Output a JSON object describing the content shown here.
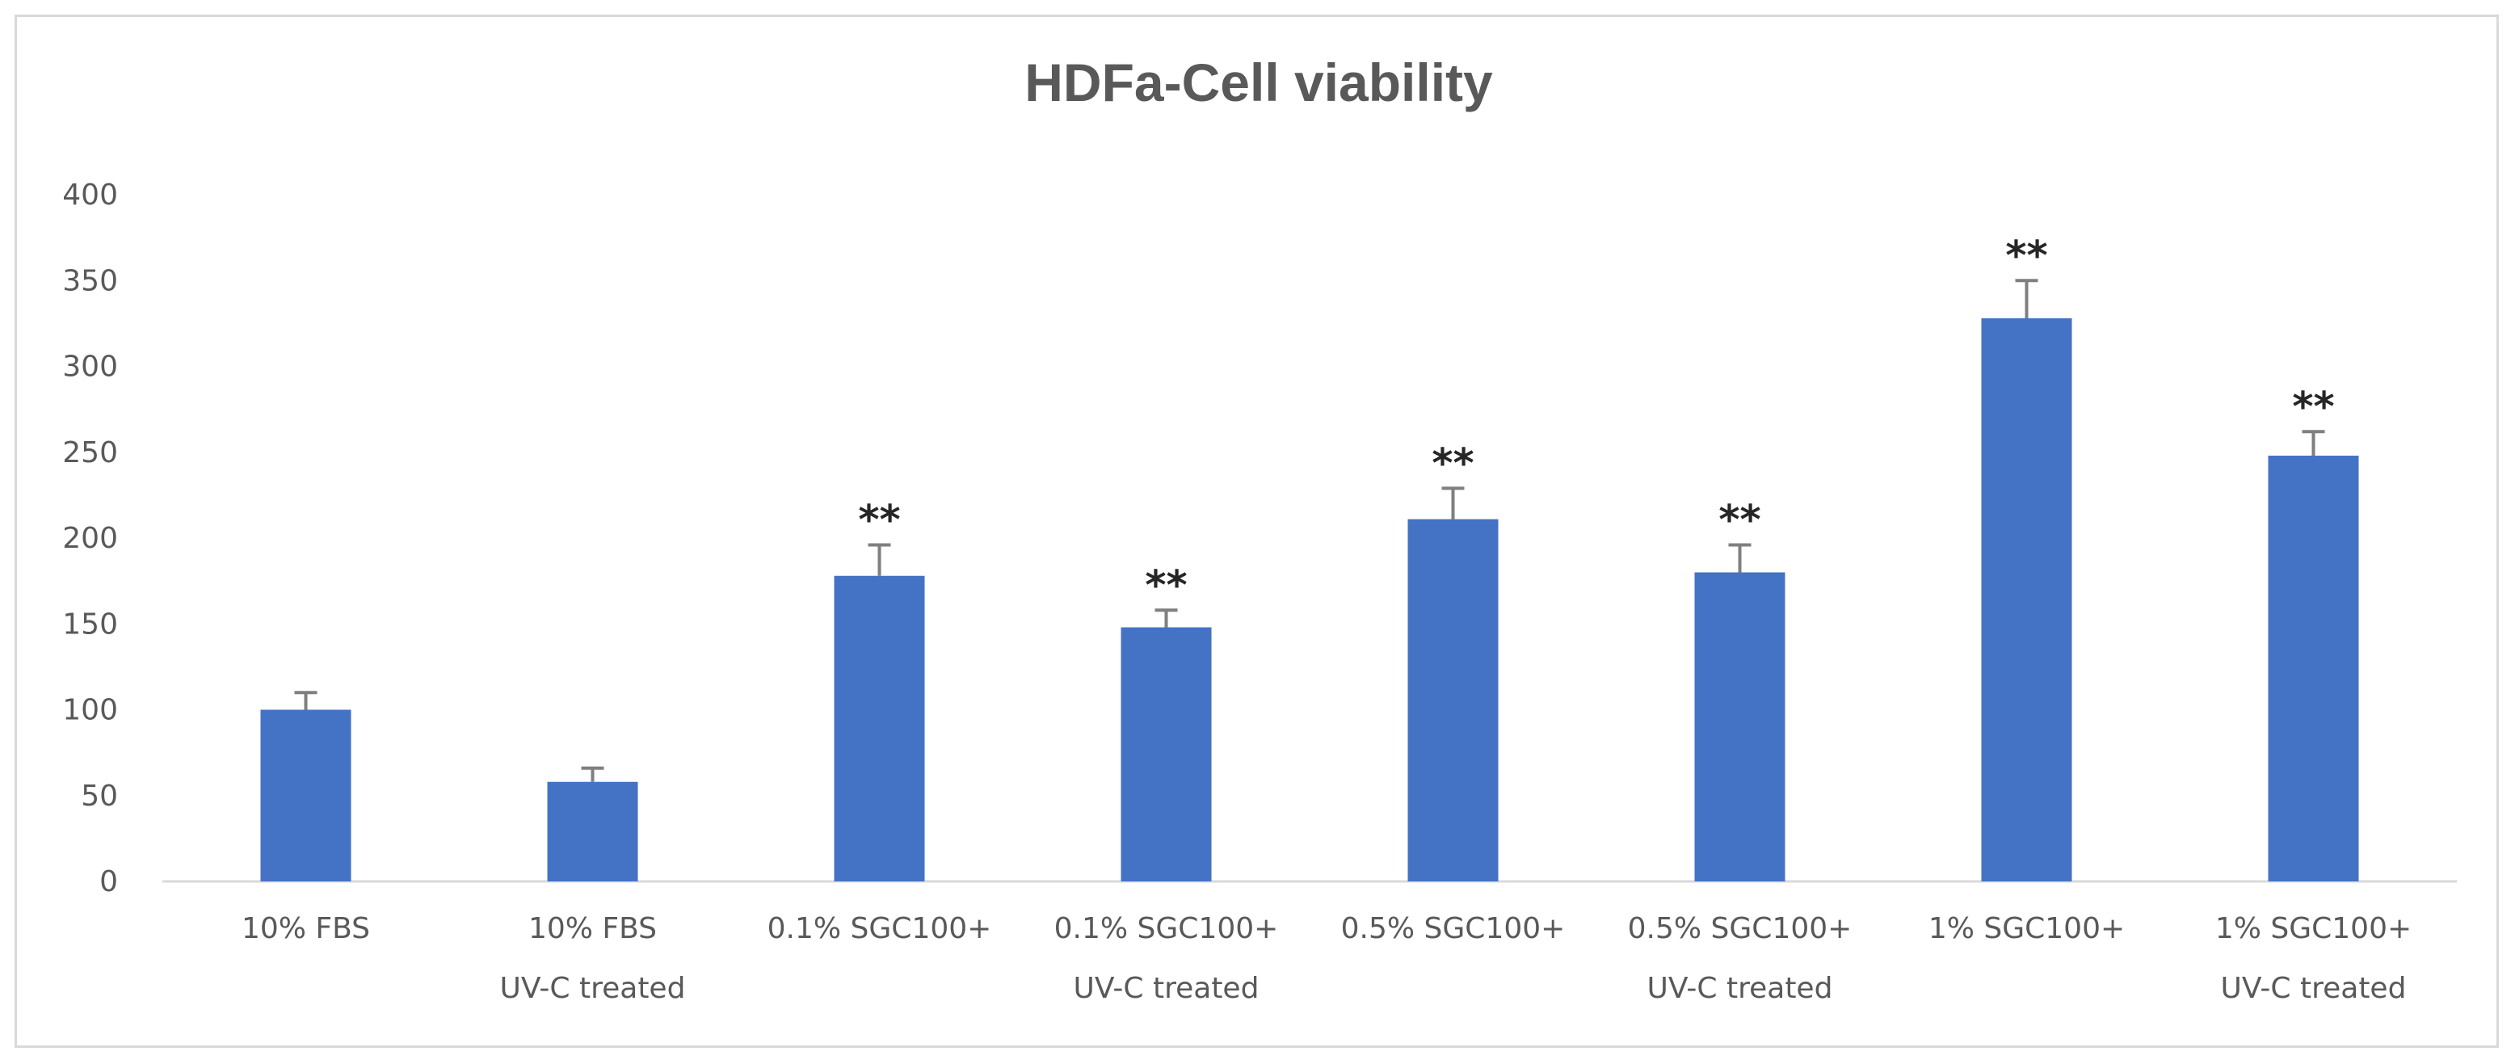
{
  "chart_data": {
    "type": "bar",
    "title": "HDFa-Cell viability",
    "xlabel": "",
    "ylabel": "",
    "ylim": [
      0,
      400
    ],
    "yticks": [
      0,
      50,
      100,
      150,
      200,
      250,
      300,
      350,
      400
    ],
    "grid": false,
    "legend": "none",
    "categories": [
      [
        "10% FBS"
      ],
      [
        "10% FBS",
        "UV-C treated"
      ],
      [
        "0.1% SGC100+"
      ],
      [
        "0.1% SGC100+",
        "UV-C treated"
      ],
      [
        "0.5% SGC100+"
      ],
      [
        "0.5% SGC100+",
        "UV-C treated"
      ],
      [
        "1% SGC100+"
      ],
      [
        "1% SGC100+",
        "UV-C treated"
      ]
    ],
    "series": [
      {
        "name": "Cell viability",
        "color": "#4472c4",
        "values": [
          100,
          58,
          178,
          148,
          211,
          180,
          328,
          248
        ],
        "error": [
          10,
          8,
          18,
          10,
          18,
          16,
          22,
          14
        ],
        "annotations": [
          "",
          "",
          "**",
          "**",
          "**",
          "**",
          "**",
          "**"
        ]
      }
    ],
    "colors": {
      "bar": "#4472c4",
      "axis": "#d9d9d9",
      "error_bar": "#7f7f7f",
      "text": "#595959"
    }
  }
}
